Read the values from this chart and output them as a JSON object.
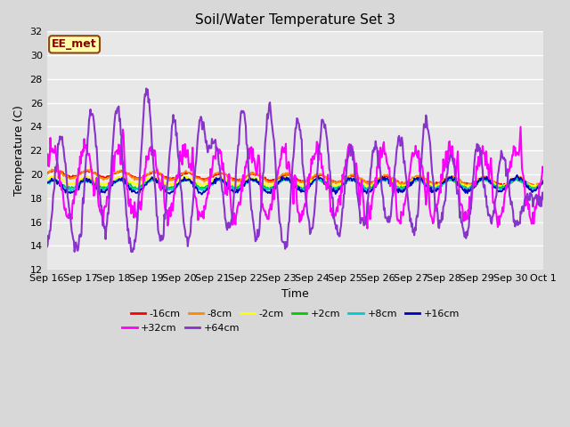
{
  "title": "Soil/Water Temperature Set 3",
  "xlabel": "Time",
  "ylabel": "Temperature (C)",
  "ylim": [
    12,
    32
  ],
  "yticks": [
    12,
    14,
    16,
    18,
    20,
    22,
    24,
    26,
    28,
    30,
    32
  ],
  "annotation": "EE_met",
  "fig_bg_color": "#d8d8d8",
  "plot_bg_color": "#e8e8e8",
  "grid_color": "#ffffff",
  "series_colors": {
    "-16cm": "#ff0000",
    "-8cm": "#ff8800",
    "-2cm": "#ffff00",
    "+2cm": "#00cc00",
    "+8cm": "#00cccc",
    "+16cm": "#0000bb",
    "+32cm": "#ff00ff",
    "+64cm": "#8833cc"
  },
  "legend_row1": [
    "-16cm",
    "-8cm",
    "-2cm",
    "+2cm",
    "+8cm",
    "+16cm"
  ],
  "legend_row2": [
    "+32cm",
    "+64cm"
  ],
  "x_labels": [
    "Sep 16",
    "Sep 17",
    "Sep 18",
    "Sep 19",
    "Sep 20",
    "Sep 21",
    "Sep 22",
    "Sep 23",
    "Sep 24",
    "Sep 25",
    "Sep 26",
    "Sep 27",
    "Sep 28",
    "Sep 29",
    "Sep 30",
    "Oct 1"
  ]
}
